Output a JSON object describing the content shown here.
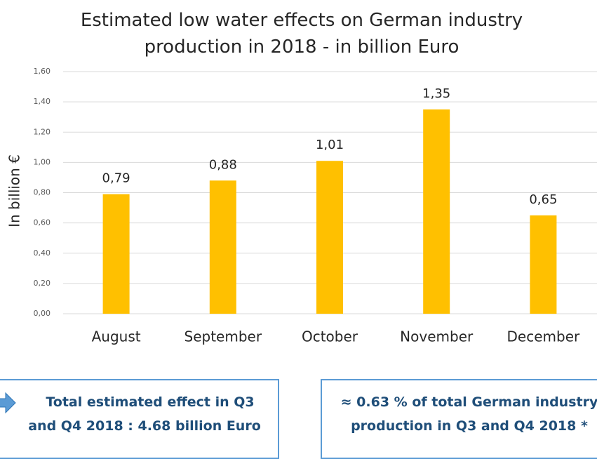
{
  "chart_data": {
    "type": "bar",
    "title": "Estimated low water effects on German industry production in 2018 - in billion Euro",
    "y_label": "In billion €",
    "categories": [
      "August",
      "September",
      "October",
      "November",
      "December"
    ],
    "values": [
      0.79,
      0.88,
      1.01,
      1.35,
      0.65
    ],
    "value_labels": [
      "0,79",
      "0,88",
      "1,01",
      "1,35",
      "0,65"
    ],
    "color": "#ffc000",
    "ylim": [
      0,
      1.6
    ],
    "yticks": [
      {
        "value": 0,
        "label": "0,00"
      },
      {
        "value": 0.2,
        "label": "0,20"
      },
      {
        "value": 0.4,
        "label": "0,40"
      },
      {
        "value": 0.6,
        "label": "0,60"
      },
      {
        "value": 0.8,
        "label": "0,80"
      },
      {
        "value": 1.0,
        "label": "1,00"
      },
      {
        "value": 1.2,
        "label": "1,20"
      },
      {
        "value": 1.4,
        "label": "1,40"
      },
      {
        "value": 1.6,
        "label": "1,60"
      }
    ],
    "grid": true
  },
  "notes": [
    {
      "lines": [
        "Total estimated effect in Q3",
        "and Q4 2018 : 4.68 billion Euro"
      ]
    },
    {
      "lines": [
        "≈  0.63 % of total German industry",
        "production in Q3 and Q4 2018 *"
      ]
    }
  ]
}
